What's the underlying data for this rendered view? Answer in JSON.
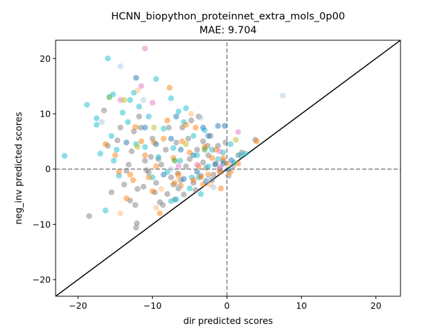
{
  "chart_data": {
    "type": "scatter",
    "title": "HCNN_biopython_proteinnet_extra_mols_0p00",
    "subtitle": "MAE: 9.704",
    "xlabel": "dir predicted scores",
    "ylabel": "neg_inv predicted scores",
    "xlim": [
      -23,
      23.3
    ],
    "ylim": [
      -23,
      23.3
    ],
    "xticks": [
      -20,
      -10,
      0,
      10,
      20
    ],
    "yticks": [
      -20,
      -10,
      0,
      10,
      20
    ],
    "grid": false,
    "legend": "none",
    "reference_lines": {
      "diagonal": "y = x (solid black)",
      "horizontal": "y = 0 (dashed gray)",
      "vertical": "x = 0 (dashed gray)"
    },
    "colors": {
      "gray": "#7f7f7f",
      "cyan": "#17becf",
      "orange": "#ff7f0e",
      "blue": "#1f77b4",
      "pink": "#e377c2",
      "olive": "#bcbd22",
      "green": "#2ca02c",
      "light_blue": "#aec7e8",
      "light_orange": "#ffbb78"
    },
    "series": [
      {
        "color": "gray",
        "points": [
          [
            -18.5,
            -8.5
          ],
          [
            -16.5,
            10.6
          ],
          [
            -14.3,
            7.5
          ],
          [
            -13.8,
            -2.8
          ],
          [
            -13,
            -5.7
          ],
          [
            -12.2,
            -10.6
          ],
          [
            -12.1,
            -9.8
          ],
          [
            -12,
            -3.6
          ],
          [
            -11.6,
            7.5
          ],
          [
            -11.2,
            -3.2
          ],
          [
            -10.5,
            -0.6
          ],
          [
            -10,
            5.5
          ],
          [
            -9.7,
            -4.2
          ],
          [
            -9.5,
            -2.5
          ],
          [
            -9,
            -6
          ],
          [
            -8.6,
            -6.5
          ],
          [
            -8,
            -4.5
          ],
          [
            -7.5,
            -1.5
          ],
          [
            -7,
            -5.5
          ],
          [
            -6.5,
            -3.5
          ],
          [
            -6.2,
            -2
          ],
          [
            -5.8,
            -4.6
          ],
          [
            -5.5,
            0.5
          ],
          [
            -5,
            1.8
          ],
          [
            -4.5,
            -2.5
          ],
          [
            -4,
            3.5
          ],
          [
            -3.5,
            -1.2
          ],
          [
            -3.2,
            5
          ],
          [
            -2.8,
            0.2
          ],
          [
            -2.5,
            2.5
          ],
          [
            -2,
            -2
          ],
          [
            -1.5,
            1
          ],
          [
            -1.2,
            4.2
          ],
          [
            -0.8,
            -0.5
          ],
          [
            -0.5,
            1.5
          ],
          [
            0.2,
            -1.2
          ],
          [
            0.8,
            0.6
          ],
          [
            1.5,
            2.5
          ],
          [
            2,
            3
          ],
          [
            3.8,
            5.3
          ],
          [
            -15.5,
            -4.2
          ],
          [
            -14.7,
            5.2
          ],
          [
            -13.2,
            0.8
          ],
          [
            -12.8,
            3.2
          ],
          [
            -12.5,
            6.8
          ],
          [
            -11.8,
            9.5
          ],
          [
            -11,
            1.5
          ],
          [
            -10.2,
            2.2
          ],
          [
            -8.8,
            0.8
          ],
          [
            -8.2,
            3.5
          ],
          [
            -7.8,
            7.5
          ],
          [
            -6.8,
            4.8
          ],
          [
            -6,
            7.5
          ],
          [
            -5.2,
            5.5
          ],
          [
            -4.8,
            8.8
          ],
          [
            -3.8,
            9.5
          ],
          [
            -3.2,
            1.2
          ],
          [
            -2.2,
            6
          ],
          [
            -1.8,
            -1
          ],
          [
            -1,
            0
          ],
          [
            -0.2,
            4.8
          ],
          [
            -16,
            4.2
          ],
          [
            -13.5,
            -0.3
          ],
          [
            -12.3,
            -6.5
          ],
          [
            -10.8,
            -0.2
          ],
          [
            -9.2,
            1.8
          ],
          [
            -7.2,
            -2.8
          ],
          [
            -6.6,
            -0.8
          ],
          [
            -4.2,
            -3.8
          ],
          [
            -2.6,
            4.2
          ]
        ]
      },
      {
        "color": "cyan",
        "points": [
          [
            -21.8,
            2.4
          ],
          [
            -18.8,
            11.6
          ],
          [
            -17.5,
            9.2
          ],
          [
            -17,
            2.8
          ],
          [
            -16.3,
            -7.5
          ],
          [
            -15.2,
            1.5
          ],
          [
            -14.5,
            -1.2
          ],
          [
            -13.3,
            8.5
          ],
          [
            -13,
            12.5
          ],
          [
            -12.5,
            13.8
          ],
          [
            -11.8,
            11.3
          ],
          [
            -11,
            4
          ],
          [
            -10.5,
            9.5
          ],
          [
            -9.5,
            16.3
          ],
          [
            -9.2,
            2.2
          ],
          [
            -8.5,
            7.3
          ],
          [
            -8,
            -0.5
          ],
          [
            -7.5,
            12.8
          ],
          [
            -7.2,
            3.8
          ],
          [
            -6.8,
            -5.5
          ],
          [
            -6.3,
            1.5
          ],
          [
            -5.8,
            8.5
          ],
          [
            -5.5,
            11
          ],
          [
            -5,
            -3.5
          ],
          [
            -4.5,
            6
          ],
          [
            -4,
            2.5
          ],
          [
            -3.8,
            -1.5
          ],
          [
            -3,
            7
          ],
          [
            -2.5,
            0.5
          ],
          [
            -2,
            3.5
          ],
          [
            -1.2,
            1.8
          ],
          [
            -0.5,
            3
          ],
          [
            0.5,
            4.5
          ],
          [
            1,
            1.2
          ],
          [
            1.8,
            2.5
          ],
          [
            2.5,
            2.8
          ],
          [
            -16,
            20
          ],
          [
            -15.3,
            13.5
          ],
          [
            -14,
            10.2
          ],
          [
            -12.2,
            4.5
          ],
          [
            -10,
            -1.5
          ],
          [
            -7.5,
            -5.8
          ],
          [
            -6.5,
            10.4
          ],
          [
            -4.7,
            -1.5
          ],
          [
            -3.5,
            -4.5
          ],
          [
            -17.5,
            8
          ],
          [
            -15.5,
            6
          ],
          [
            -14.8,
            3.5
          ]
        ]
      },
      {
        "color": "orange",
        "points": [
          [
            -16.3,
            4.5
          ],
          [
            -15,
            2.5
          ],
          [
            -13.5,
            -5.3
          ],
          [
            -12.6,
            -2
          ],
          [
            -12.3,
            7.6
          ],
          [
            -11.5,
            5
          ],
          [
            -11,
            2.5
          ],
          [
            -10.5,
            -1.5
          ],
          [
            -10,
            -4
          ],
          [
            -9.5,
            0.5
          ],
          [
            -9,
            -8
          ],
          [
            -8.5,
            5.5
          ],
          [
            -8,
            8.8
          ],
          [
            -7.7,
            14.7
          ],
          [
            -7.2,
            2
          ],
          [
            -7,
            -2.5
          ],
          [
            -6.5,
            -1
          ],
          [
            -6,
            5
          ],
          [
            -5.5,
            8
          ],
          [
            -5,
            3
          ],
          [
            -4.5,
            -2
          ],
          [
            -4.2,
            7.5
          ],
          [
            -3.8,
            0.5
          ],
          [
            -3.5,
            -1.5
          ],
          [
            -3,
            4
          ],
          [
            -2.5,
            -1
          ],
          [
            -2,
            2
          ],
          [
            -1.5,
            3.5
          ],
          [
            -1,
            -0.5
          ],
          [
            -0.5,
            2
          ],
          [
            0,
            1
          ],
          [
            0.5,
            -0.5
          ],
          [
            1.5,
            1
          ],
          [
            4,
            5
          ],
          [
            -13,
            -1
          ],
          [
            -9.8,
            4.8
          ],
          [
            -6.2,
            -3
          ],
          [
            -3.2,
            -2.8
          ],
          [
            -0.8,
            -3.5
          ],
          [
            -14.5,
            -0.5
          ]
        ]
      },
      {
        "color": "blue",
        "points": [
          [
            -12.2,
            16.5
          ],
          [
            -11,
            7.5
          ],
          [
            -9.5,
            4.5
          ],
          [
            -7.5,
            5.5
          ],
          [
            -6.8,
            9.5
          ],
          [
            -6.2,
            3.5
          ],
          [
            -4.5,
            2.5
          ],
          [
            -4,
            -0.5
          ],
          [
            -3.2,
            7.5
          ],
          [
            -2.5,
            6
          ],
          [
            -1.2,
            7.8
          ],
          [
            -0.3,
            7.8
          ],
          [
            -0.5,
            1
          ],
          [
            0.2,
            -0.2
          ],
          [
            0.6,
            1.6
          ],
          [
            -13.5,
            4.8
          ],
          [
            -8.5,
            -1
          ],
          [
            -5.8,
            -1.8
          ],
          [
            -2.8,
            -2.2
          ],
          [
            -1.6,
            0.8
          ]
        ]
      },
      {
        "color": "pink",
        "points": [
          [
            -11,
            21.8
          ],
          [
            -14.3,
            12.5
          ],
          [
            -11.5,
            15
          ],
          [
            -10,
            12
          ],
          [
            -6.5,
            0.5
          ],
          [
            -4,
            0.8
          ],
          [
            -1,
            3.2
          ],
          [
            1.5,
            6.7
          ],
          [
            -0.9,
            0.3
          ]
        ]
      },
      {
        "color": "olive",
        "points": [
          [
            -13.8,
            12.5
          ],
          [
            -9.8,
            7.5
          ],
          [
            -5.5,
            4.5
          ],
          [
            1.2,
            5.3
          ],
          [
            -12,
            4
          ]
        ]
      },
      {
        "color": "green",
        "points": [
          [
            -15.8,
            13
          ],
          [
            -7,
            1.5
          ],
          [
            -3,
            3.5
          ]
        ]
      },
      {
        "color": "light_blue",
        "points": [
          [
            -14.3,
            18.6
          ],
          [
            7.5,
            13.3
          ],
          [
            -16.8,
            8.5
          ],
          [
            -11.2,
            12.5
          ],
          [
            -7.5,
            0
          ],
          [
            -6.5,
            -3.2
          ],
          [
            -3.5,
            9.3
          ],
          [
            -1.8,
            -3.3
          ],
          [
            -2.5,
            -1.8
          ]
        ]
      },
      {
        "color": "light_orange",
        "points": [
          [
            -14.3,
            -8
          ],
          [
            -9.5,
            -7
          ],
          [
            -12,
            14.2
          ],
          [
            -6.5,
            -1.5
          ],
          [
            -4.8,
            10
          ],
          [
            -2.3,
            -2.8
          ],
          [
            0.3,
            -0.9
          ],
          [
            -8.8,
            -3.6
          ]
        ]
      }
    ]
  }
}
